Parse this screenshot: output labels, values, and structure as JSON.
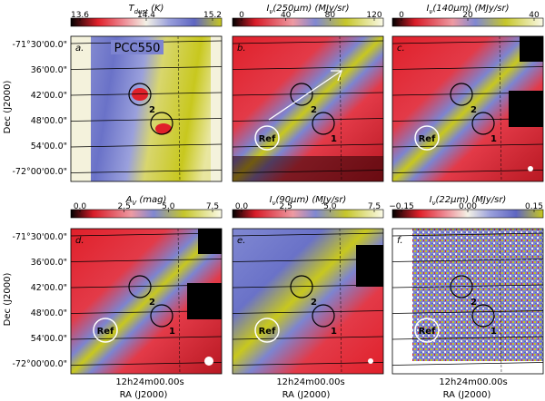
{
  "figure": {
    "colors": {
      "black": "#000000",
      "red": "#e0202a",
      "pink": "#e87080",
      "blue": "#6a72c8",
      "lightblue": "#b7bde6",
      "cream": "#f4f2dc",
      "yellow": "#c8c81e"
    },
    "ylabel": "Dec (J2000)",
    "xlabel": "RA (J2000)",
    "ra_tick": "12h24m00.00s",
    "dec_ticks": [
      "-71°30'00.0\"",
      "36'00.0\"",
      "42'00.0\"",
      "48'00.0\"",
      "54'00.0\"",
      "-72°00'00.0\""
    ],
    "panels": [
      {
        "id": "a",
        "letter": "a.",
        "quantity": "T",
        "subscript": "dust",
        "units": " (K)",
        "colorbar_ticks": [
          "13.6",
          "14.4",
          "15.2"
        ],
        "cloud_label": "PCC550",
        "marker_1": "",
        "marker_2": "2",
        "ref_label": "",
        "arrow": false,
        "beam": false
      },
      {
        "id": "b",
        "letter": "b.",
        "quantity": "I",
        "subscript": "ν",
        "units": "(250μm)  (MJy/sr)",
        "colorbar_ticks": [
          "0",
          "40",
          "80",
          "120"
        ],
        "cloud_label": "",
        "marker_1": "1",
        "marker_2": "2",
        "ref_label": "Ref",
        "arrow": true,
        "beam": false
      },
      {
        "id": "c",
        "letter": "c.",
        "quantity": "I",
        "subscript": "ν",
        "units": "(140μm)  (MJy/sr)",
        "colorbar_ticks": [
          "0",
          "20",
          "40"
        ],
        "cloud_label": "",
        "marker_1": "1",
        "marker_2": "2",
        "ref_label": "Ref",
        "arrow": false,
        "beam": true
      },
      {
        "id": "d",
        "letter": "d.",
        "quantity": "A",
        "subscript": "V",
        "units": "  (mag)",
        "colorbar_ticks": [
          "0.0",
          "2.5",
          "5.0",
          "7.5"
        ],
        "cloud_label": "",
        "marker_1": "1",
        "marker_2": "2",
        "ref_label": "Ref",
        "arrow": false,
        "beam": true
      },
      {
        "id": "e",
        "letter": "e.",
        "quantity": "I",
        "subscript": "ν",
        "units": "(90μm)  (MJy/sr)",
        "colorbar_ticks": [
          "0.0",
          "2.5",
          "5.0",
          "7.5"
        ],
        "cloud_label": "",
        "marker_1": "1",
        "marker_2": "2",
        "ref_label": "Ref",
        "arrow": false,
        "beam": true
      },
      {
        "id": "f",
        "letter": "f.",
        "quantity": "I",
        "subscript": "ν",
        "units": "(22μm)  (MJy/sr)",
        "colorbar_ticks": [
          "−0.15",
          "0.00",
          "0.15"
        ],
        "cloud_label": "",
        "marker_1": "1",
        "marker_2": "2",
        "ref_label": "Ref",
        "arrow": false,
        "beam": false
      }
    ]
  }
}
